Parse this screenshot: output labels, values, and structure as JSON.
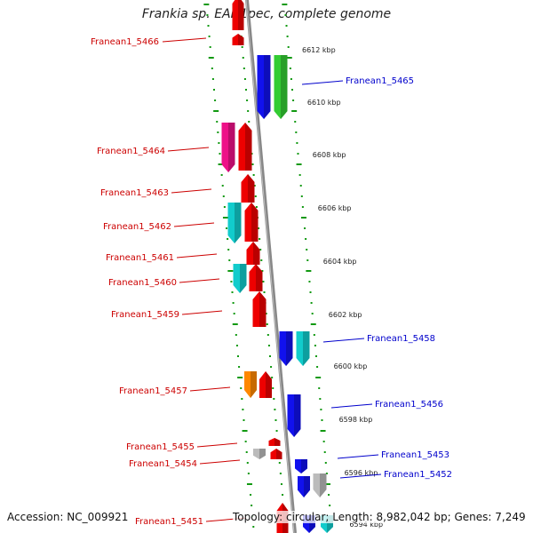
{
  "title": "Frankia sp. EAN1pec, complete genome",
  "footer": {
    "accession": "Accession: NC_009921",
    "summary": "Topology: circular; Length: 8,982,042 bp; Genes: 7,249"
  },
  "colors": {
    "red": "#ee0000",
    "magenta": "#ee1188",
    "cyan": "#11cccc",
    "orange": "#ff8800",
    "blue": "#1111ee",
    "green": "#33cc33",
    "gray": "#bbbbbb",
    "backbone": "#888888",
    "ticks": "#119911",
    "label_left": "#cc0000",
    "label_right": "#0000cc"
  },
  "kbp_ticks": [
    "6612 kbp",
    "6610 kbp",
    "6608 kbp",
    "6606 kbp",
    "6604 kbp",
    "6602 kbp",
    "6600 kbp",
    "6598 kbp",
    "6596 kbp",
    "6594 kbp"
  ],
  "genes_left": [
    {
      "name": "Franean1_5466",
      "color": "red"
    },
    {
      "name": "Franean1_5464",
      "color": "magenta"
    },
    {
      "name": "Franean1_5463",
      "color": "red"
    },
    {
      "name": "Franean1_5462",
      "color": "cyan"
    },
    {
      "name": "Franean1_5461",
      "color": "red"
    },
    {
      "name": "Franean1_5460",
      "color": "cyan"
    },
    {
      "name": "Franean1_5459",
      "color": "red"
    },
    {
      "name": "Franean1_5457",
      "color": "orange"
    },
    {
      "name": "Franean1_5455",
      "color": "red"
    },
    {
      "name": "Franean1_5454",
      "color": "gray"
    },
    {
      "name": "Franean1_5451",
      "color": "red"
    }
  ],
  "genes_right": [
    {
      "name": "Franean1_5465",
      "color": "blue"
    },
    {
      "name": "Franean1_5458",
      "color": "blue"
    },
    {
      "name": "Franean1_5456",
      "color": "blue"
    },
    {
      "name": "Franean1_5453",
      "color": "blue"
    },
    {
      "name": "Franean1_5452",
      "color": "gray"
    }
  ]
}
